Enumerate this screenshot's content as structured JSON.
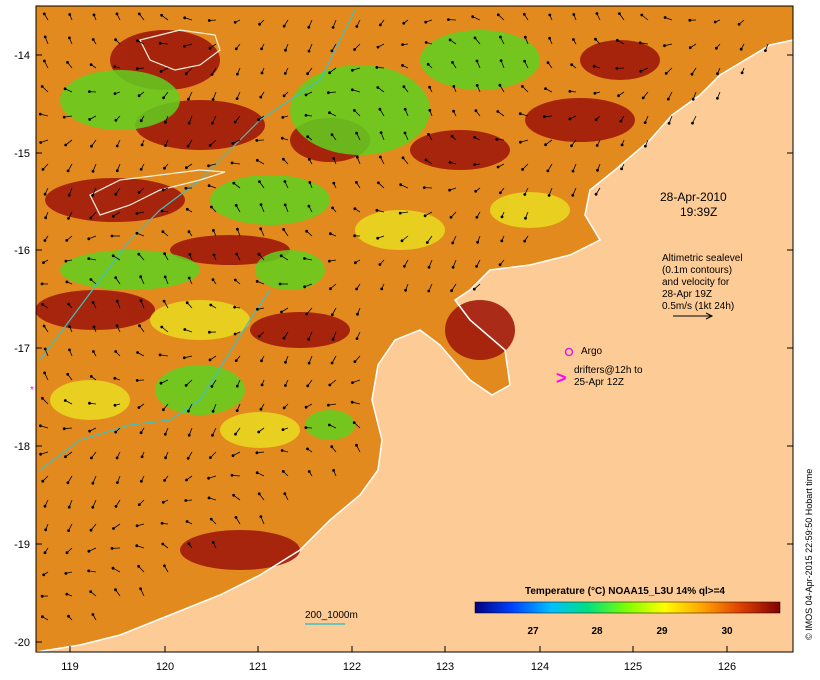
{
  "map": {
    "lon_ticks": [
      "119",
      "120",
      "121",
      "122",
      "123",
      "124",
      "125",
      "126"
    ],
    "lat_ticks": [
      "-14",
      "-15",
      "-16",
      "-17",
      "-18",
      "-19",
      "-20"
    ],
    "date_line1": "28-Apr-2010",
    "date_line2": "19:39Z",
    "info_lines": [
      "Altimetric sealevel",
      "(0.1m contours)",
      "and velocity for",
      "28-Apr 19Z",
      "0.5m/s (1kt 24h)"
    ],
    "argo_label": "Argo",
    "drifters_line1": "drifters@12h to",
    "drifters_line2": "25-Apr 12Z",
    "depth_label": "200_1000m",
    "colorbar_title": "Temperature (°C) NOAA15_L3U 14% ql>=4",
    "colorbar_ticks": [
      "27",
      "28",
      "29",
      "30"
    ],
    "credit": "© IMOS 04-Apr-2015 22:59:50 Hobart time",
    "colors": {
      "land": "#fdcb96",
      "coast": "#ffffff",
      "contour": "#40c0c0",
      "argo": "#e020e0",
      "drifter": "#ff00ff"
    }
  }
}
